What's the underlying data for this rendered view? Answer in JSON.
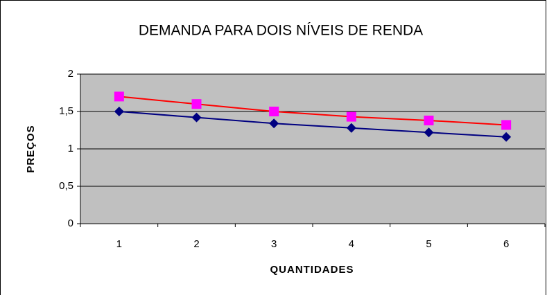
{
  "chart_data": {
    "type": "line",
    "title": "DEMANDA PARA DOIS NÍVEIS DE RENDA",
    "x_label": "QUANTIDADES",
    "y_label": "PREÇOS",
    "categories": [
      "1",
      "2",
      "3",
      "4",
      "5",
      "6"
    ],
    "series": [
      {
        "color": "#000080",
        "line_color": "#000080",
        "marker": "diamond",
        "values": [
          1.5,
          1.42,
          1.34,
          1.28,
          1.22,
          1.16
        ]
      },
      {
        "color": "#ff00ff",
        "line_color": "#ff0000",
        "marker": "square",
        "values": [
          1.7,
          1.6,
          1.5,
          1.43,
          1.38,
          1.32
        ]
      }
    ],
    "ylim": [
      0,
      2
    ],
    "yticks": [
      0,
      {
        "value": 0.5,
        "label": "0,5"
      },
      1,
      {
        "value": 1.5,
        "label": "1,5"
      },
      2
    ],
    "grid": true,
    "plot_background": "#c0c0c0"
  }
}
